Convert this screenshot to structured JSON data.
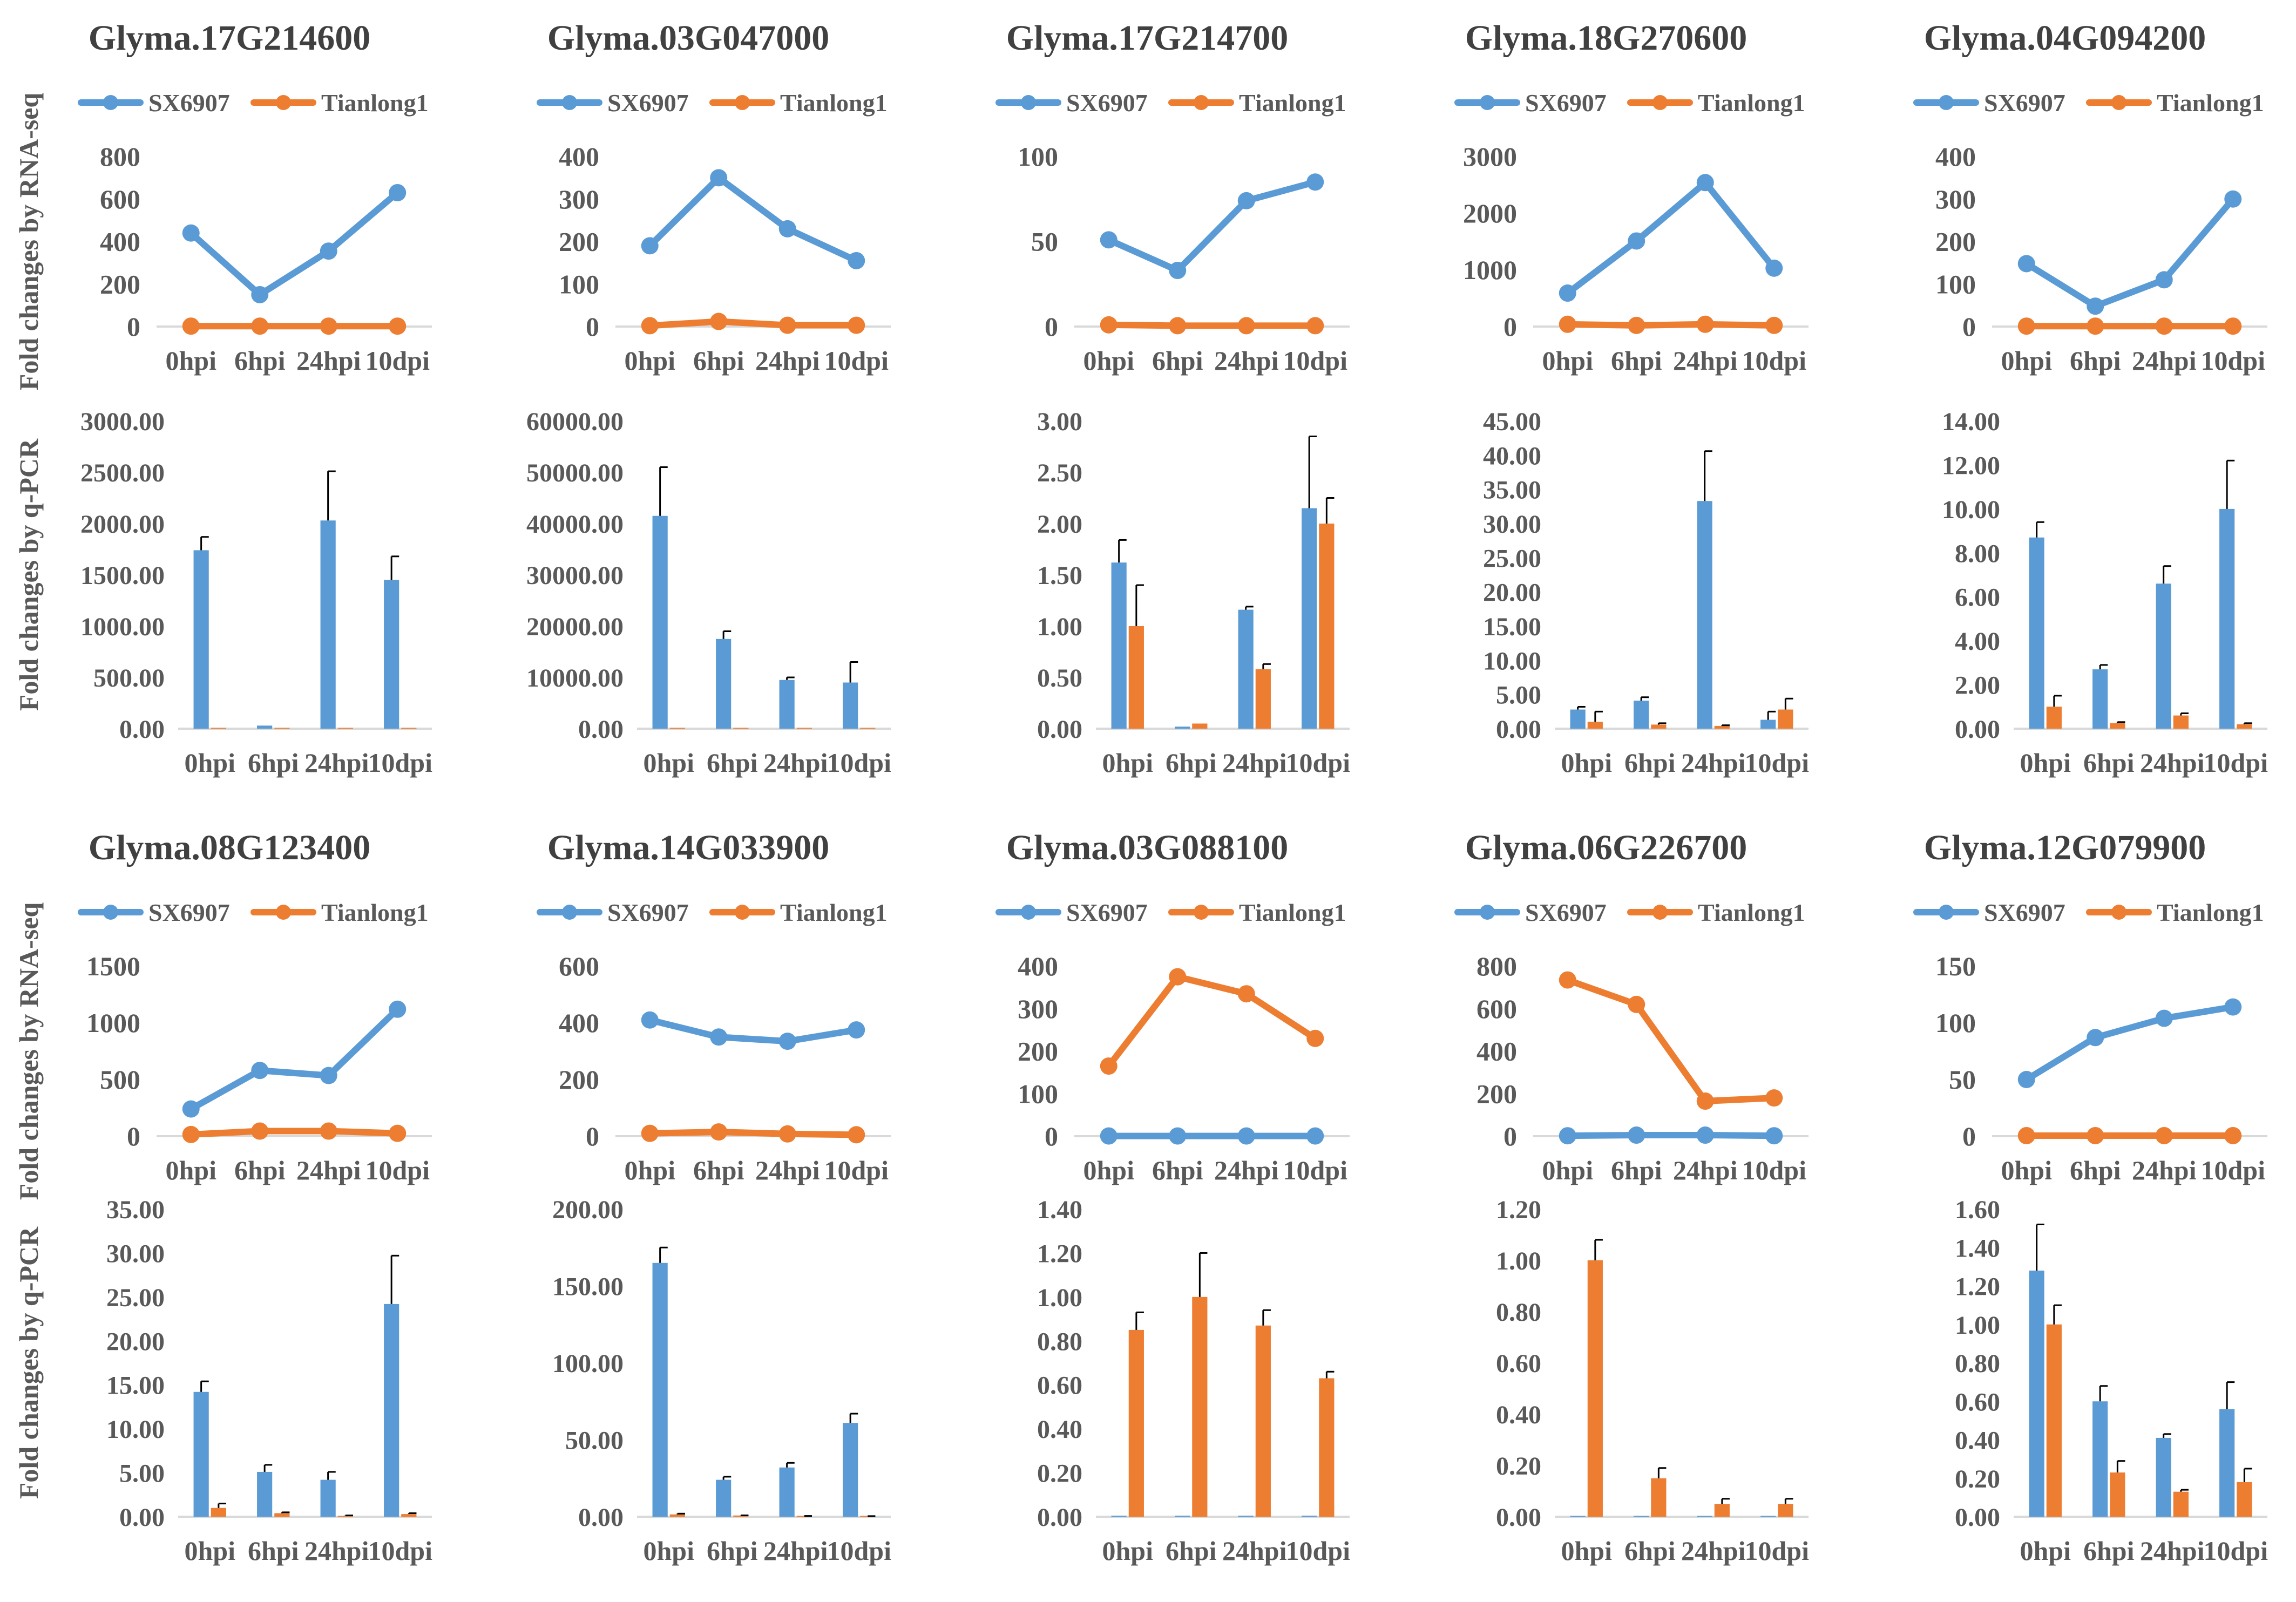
{
  "figure": {
    "row_labels": {
      "rna": "Fold changes by RNA-seq",
      "qpcr": "Fold changes by q-PCR"
    },
    "legend": {
      "series_a": "SX6907",
      "series_b": "Tianlong1"
    }
  },
  "colors": {
    "blue": "#5B9BD5",
    "orange": "#ED7D31",
    "axis": "#D9D9D9",
    "text": "#595959"
  },
  "chart_data": [
    {
      "id": "r1c1-rna",
      "type": "line",
      "title": "Glyma.17G214600",
      "categories": [
        "0hpi",
        "6hpi",
        "24hpi",
        "10dpi"
      ],
      "ylim": [
        0,
        800
      ],
      "yticks": [
        "0",
        "200",
        "400",
        "600",
        "800"
      ],
      "ylabel": "Fold changes by RNA-seq",
      "series": [
        {
          "name": "SX6907",
          "values": [
            440,
            150,
            355,
            630
          ]
        },
        {
          "name": "Tianlong1",
          "values": [
            2,
            2,
            2,
            2
          ]
        }
      ]
    },
    {
      "id": "r1c2-rna",
      "type": "line",
      "title": "Glyma.03G047000",
      "categories": [
        "0hpi",
        "6hpi",
        "24hpi",
        "10dpi"
      ],
      "ylim": [
        0,
        400
      ],
      "yticks": [
        "0",
        "100",
        "200",
        "300",
        "400"
      ],
      "ylabel": "",
      "series": [
        {
          "name": "SX6907",
          "values": [
            190,
            350,
            230,
            155
          ]
        },
        {
          "name": "Tianlong1",
          "values": [
            2,
            12,
            3,
            3
          ]
        }
      ]
    },
    {
      "id": "r1c3-rna",
      "type": "line",
      "title": "Glyma.17G214700",
      "categories": [
        "0hpi",
        "6hpi",
        "24hpi",
        "10dpi"
      ],
      "ylim": [
        0,
        100
      ],
      "yticks": [
        "0",
        "50",
        "100"
      ],
      "ylabel": "",
      "series": [
        {
          "name": "SX6907",
          "values": [
            51,
            33,
            74,
            85
          ]
        },
        {
          "name": "Tianlong1",
          "values": [
            1,
            0.5,
            0.5,
            0.5
          ]
        }
      ]
    },
    {
      "id": "r1c4-rna",
      "type": "line",
      "title": "Glyma.18G270600",
      "categories": [
        "0hpi",
        "6hpi",
        "24hpi",
        "10dpi"
      ],
      "ylim": [
        0,
        3000
      ],
      "yticks": [
        "0",
        "1000",
        "2000",
        "3000"
      ],
      "ylabel": "",
      "series": [
        {
          "name": "SX6907",
          "values": [
            590,
            1510,
            2540,
            1030
          ]
        },
        {
          "name": "Tianlong1",
          "values": [
            40,
            20,
            40,
            20
          ]
        }
      ]
    },
    {
      "id": "r1c5-rna",
      "type": "line",
      "title": "Glyma.04G094200",
      "categories": [
        "0hpi",
        "6hpi",
        "24hpi",
        "10dpi"
      ],
      "ylim": [
        0,
        400
      ],
      "yticks": [
        "0",
        "100",
        "200",
        "300",
        "400"
      ],
      "ylabel": "",
      "series": [
        {
          "name": "SX6907",
          "values": [
            148,
            48,
            110,
            300
          ]
        },
        {
          "name": "Tianlong1",
          "values": [
            1,
            1,
            1,
            1
          ]
        }
      ]
    },
    {
      "id": "r1c1-qpcr",
      "type": "bar",
      "categories": [
        "0hpi",
        "6hpi",
        "24hpi",
        "10dpi"
      ],
      "ylim": [
        0,
        3000
      ],
      "yticks": [
        "0.00",
        "500.00",
        "1000.00",
        "1500.00",
        "2000.00",
        "2500.00",
        "3000.00"
      ],
      "ylabel": "Fold changes by q-PCR",
      "series": [
        {
          "name": "SX6907",
          "values": [
            1740,
            30,
            2030,
            1450
          ],
          "errors": [
            130,
            0,
            480,
            230
          ]
        },
        {
          "name": "Tianlong1",
          "values": [
            0,
            0,
            0,
            0
          ],
          "errors": [
            0,
            0,
            0,
            0
          ]
        }
      ]
    },
    {
      "id": "r1c2-qpcr",
      "type": "bar",
      "categories": [
        "0hpi",
        "6hpi",
        "24hpi",
        "10dpi"
      ],
      "ylim": [
        0,
        60000
      ],
      "yticks": [
        "0.00",
        "10000.00",
        "20000.00",
        "30000.00",
        "40000.00",
        "50000.00",
        "60000.00"
      ],
      "ylabel": "",
      "series": [
        {
          "name": "SX6907",
          "values": [
            41500,
            17500,
            9500,
            9000
          ],
          "errors": [
            9500,
            1500,
            500,
            4000
          ]
        },
        {
          "name": "Tianlong1",
          "values": [
            100,
            100,
            100,
            100
          ],
          "errors": [
            0,
            0,
            0,
            0
          ]
        }
      ]
    },
    {
      "id": "r1c3-qpcr",
      "type": "bar",
      "categories": [
        "0hpi",
        "6hpi",
        "24hpi",
        "10dpi"
      ],
      "ylim": [
        0,
        3
      ],
      "yticks": [
        "0.00",
        "0.50",
        "1.00",
        "1.50",
        "2.00",
        "2.50",
        "3.00"
      ],
      "ylabel": "",
      "series": [
        {
          "name": "SX6907",
          "values": [
            1.62,
            0.02,
            1.16,
            2.15
          ],
          "errors": [
            0.22,
            0,
            0.03,
            0.7
          ]
        },
        {
          "name": "Tianlong1",
          "values": [
            1.0,
            0.05,
            0.58,
            2.0
          ],
          "errors": [
            0.4,
            0,
            0.05,
            0.25
          ]
        }
      ]
    },
    {
      "id": "r1c4-qpcr",
      "type": "bar",
      "categories": [
        "0hpi",
        "6hpi",
        "24hpi",
        "10dpi"
      ],
      "ylim": [
        0,
        45
      ],
      "yticks": [
        "0.00",
        "5.00",
        "10.00",
        "15.00",
        "20.00",
        "25.00",
        "30.00",
        "35.00",
        "40.00",
        "45.00"
      ],
      "ylabel": "",
      "series": [
        {
          "name": "SX6907",
          "values": [
            2.8,
            4.1,
            33.3,
            1.3
          ],
          "errors": [
            0.4,
            0.5,
            7.3,
            1.2
          ]
        },
        {
          "name": "Tianlong1",
          "values": [
            1.0,
            0.6,
            0.4,
            2.8
          ],
          "errors": [
            1.5,
            0.2,
            0.1,
            1.6
          ]
        }
      ]
    },
    {
      "id": "r1c5-qpcr",
      "type": "bar",
      "categories": [
        "0hpi",
        "6hpi",
        "24hpi",
        "10dpi"
      ],
      "ylim": [
        0,
        14
      ],
      "yticks": [
        "0.00",
        "2.00",
        "4.00",
        "6.00",
        "8.00",
        "10.00",
        "12.00",
        "14.00"
      ],
      "ylabel": "",
      "series": [
        {
          "name": "SX6907",
          "values": [
            8.7,
            2.7,
            6.6,
            10.0
          ],
          "errors": [
            0.7,
            0.2,
            0.8,
            2.2
          ]
        },
        {
          "name": "Tianlong1",
          "values": [
            1.0,
            0.25,
            0.6,
            0.2
          ],
          "errors": [
            0.5,
            0.05,
            0.1,
            0.05
          ]
        }
      ]
    },
    {
      "id": "r2c1-rna",
      "type": "line",
      "title": "Glyma.08G123400",
      "categories": [
        "0hpi",
        "6hpi",
        "24hpi",
        "10dpi"
      ],
      "ylim": [
        0,
        1500
      ],
      "yticks": [
        "0",
        "500",
        "1000",
        "1500"
      ],
      "ylabel": "Fold changes by RNA-seq",
      "series": [
        {
          "name": "SX6907",
          "values": [
            240,
            580,
            535,
            1120
          ]
        },
        {
          "name": "Tianlong1",
          "values": [
            15,
            45,
            45,
            25
          ]
        }
      ]
    },
    {
      "id": "r2c2-rna",
      "type": "line",
      "title": "Glyma.14G033900",
      "categories": [
        "0hpi",
        "6hpi",
        "24hpi",
        "10dpi"
      ],
      "ylim": [
        0,
        600
      ],
      "yticks": [
        "0",
        "200",
        "400",
        "600"
      ],
      "ylabel": "",
      "series": [
        {
          "name": "SX6907",
          "values": [
            410,
            350,
            335,
            375
          ]
        },
        {
          "name": "Tianlong1",
          "values": [
            10,
            15,
            8,
            5
          ]
        }
      ]
    },
    {
      "id": "r2c3-rna",
      "type": "line",
      "title": "Glyma.03G088100",
      "categories": [
        "0hpi",
        "6hpi",
        "24hpi",
        "10dpi"
      ],
      "ylim": [
        0,
        400
      ],
      "yticks": [
        "0",
        "100",
        "200",
        "300",
        "400"
      ],
      "ylabel": "",
      "series": [
        {
          "name": "SX6907",
          "values": [
            0.5,
            0.5,
            0.5,
            0.5
          ]
        },
        {
          "name": "Tianlong1",
          "values": [
            165,
            375,
            335,
            230
          ]
        }
      ]
    },
    {
      "id": "r2c4-rna",
      "type": "line",
      "title": "Glyma.06G226700",
      "categories": [
        "0hpi",
        "6hpi",
        "24hpi",
        "10dpi"
      ],
      "ylim": [
        0,
        800
      ],
      "yticks": [
        "0",
        "200",
        "400",
        "600",
        "800"
      ],
      "ylabel": "",
      "series": [
        {
          "name": "SX6907",
          "values": [
            2,
            5,
            5,
            2
          ]
        },
        {
          "name": "Tianlong1",
          "values": [
            735,
            620,
            165,
            180
          ]
        }
      ]
    },
    {
      "id": "r2c5-rna",
      "type": "line",
      "title": "Glyma.12G079900",
      "categories": [
        "0hpi",
        "6hpi",
        "24hpi",
        "10dpi"
      ],
      "ylim": [
        0,
        150
      ],
      "yticks": [
        "0",
        "50",
        "100",
        "150"
      ],
      "ylabel": "",
      "series": [
        {
          "name": "SX6907",
          "values": [
            50,
            87,
            104,
            114
          ]
        },
        {
          "name": "Tianlong1",
          "values": [
            0.5,
            0.5,
            0.5,
            0.5
          ]
        }
      ]
    },
    {
      "id": "r2c1-qpcr",
      "type": "bar",
      "categories": [
        "0hpi",
        "6hpi",
        "24hpi",
        "10dpi"
      ],
      "ylim": [
        0,
        35
      ],
      "yticks": [
        "0.00",
        "5.00",
        "10.00",
        "15.00",
        "20.00",
        "25.00",
        "30.00",
        "35.00"
      ],
      "ylabel": "Fold changes by q-PCR",
      "series": [
        {
          "name": "SX6907",
          "values": [
            14.2,
            5.1,
            4.2,
            24.2
          ],
          "errors": [
            1.2,
            0.8,
            0.9,
            5.5
          ]
        },
        {
          "name": "Tianlong1",
          "values": [
            1.0,
            0.4,
            0.1,
            0.3
          ],
          "errors": [
            0.5,
            0.1,
            0.05,
            0.1
          ]
        }
      ]
    },
    {
      "id": "r2c2-qpcr",
      "type": "bar",
      "categories": [
        "0hpi",
        "6hpi",
        "24hpi",
        "10dpi"
      ],
      "ylim": [
        0,
        200
      ],
      "yticks": [
        "0.00",
        "50.00",
        "100.00",
        "150.00",
        "200.00"
      ],
      "ylabel": "",
      "series": [
        {
          "name": "SX6907",
          "values": [
            165,
            24,
            32,
            61
          ],
          "errors": [
            10,
            2,
            3,
            6
          ]
        },
        {
          "name": "Tianlong1",
          "values": [
            1.5,
            0.8,
            0.4,
            0.3
          ],
          "errors": [
            0.5,
            0.1,
            0.1,
            0.1
          ]
        }
      ]
    },
    {
      "id": "r2c3-qpcr",
      "type": "bar",
      "categories": [
        "0hpi",
        "6hpi",
        "24hpi",
        "10dpi"
      ],
      "ylim": [
        0,
        1.4
      ],
      "yticks": [
        "0.00",
        "0.20",
        "0.40",
        "0.60",
        "0.80",
        "1.00",
        "1.20",
        "1.40"
      ],
      "ylabel": "",
      "series": [
        {
          "name": "SX6907",
          "values": [
            0.005,
            0.005,
            0.005,
            0.005
          ],
          "errors": [
            0,
            0,
            0,
            0
          ]
        },
        {
          "name": "Tianlong1",
          "values": [
            0.85,
            1.0,
            0.87,
            0.63
          ],
          "errors": [
            0.08,
            0.2,
            0.07,
            0.03
          ]
        }
      ]
    },
    {
      "id": "r2c4-qpcr",
      "type": "bar",
      "categories": [
        "0hpi",
        "6hpi",
        "24hpi",
        "10dpi"
      ],
      "ylim": [
        0,
        1.2
      ],
      "yticks": [
        "0.00",
        "0.20",
        "0.40",
        "0.60",
        "0.80",
        "1.00",
        "1.20"
      ],
      "ylabel": "",
      "series": [
        {
          "name": "SX6907",
          "values": [
            0.001,
            0.001,
            0.001,
            0.001
          ],
          "errors": [
            0,
            0,
            0,
            0
          ]
        },
        {
          "name": "Tianlong1",
          "values": [
            1.0,
            0.15,
            0.05,
            0.05
          ],
          "errors": [
            0.08,
            0.04,
            0.02,
            0.02
          ]
        }
      ]
    },
    {
      "id": "r2c5-qpcr",
      "type": "bar",
      "categories": [
        "0hpi",
        "6hpi",
        "24hpi",
        "10dpi"
      ],
      "ylim": [
        0,
        1.6
      ],
      "yticks": [
        "0.00",
        "0.20",
        "0.40",
        "0.60",
        "0.80",
        "1.00",
        "1.20",
        "1.40",
        "1.60"
      ],
      "ylabel": "",
      "series": [
        {
          "name": "SX6907",
          "values": [
            1.28,
            0.6,
            0.41,
            0.56
          ],
          "errors": [
            0.24,
            0.08,
            0.02,
            0.14
          ]
        },
        {
          "name": "Tianlong1",
          "values": [
            1.0,
            0.23,
            0.13,
            0.18
          ],
          "errors": [
            0.1,
            0.06,
            0.01,
            0.07
          ]
        }
      ]
    }
  ]
}
